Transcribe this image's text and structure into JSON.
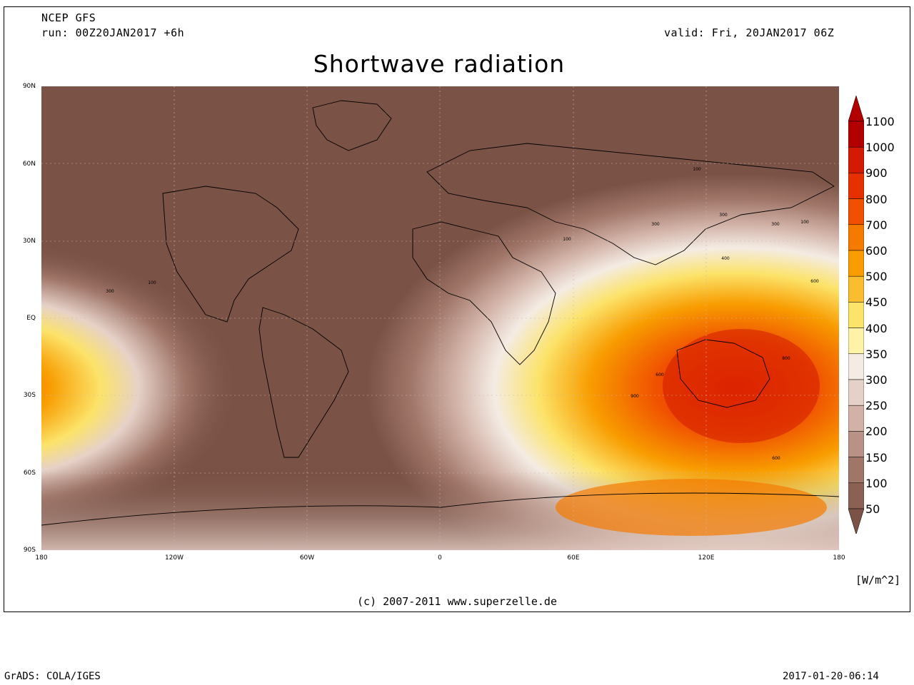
{
  "header": {
    "model": "NCEP GFS",
    "run": "run: 00Z20JAN2017 +6h",
    "valid": "valid: Fri, 20JAN2017 06Z",
    "title": "Shortwave radiation"
  },
  "axes": {
    "lat_labels": [
      "90N",
      "60N",
      "30N",
      "EQ",
      "30S",
      "60S",
      "90S"
    ],
    "lon_labels": [
      "180",
      "120W",
      "60W",
      "0",
      "60E",
      "120E",
      "180"
    ]
  },
  "colorbar": {
    "levels": [
      "1100",
      "1000",
      "900",
      "800",
      "700",
      "600",
      "500",
      "450",
      "400",
      "350",
      "300",
      "250",
      "200",
      "150",
      "100",
      "50"
    ],
    "colors": [
      "#b20000",
      "#d41a00",
      "#e63000",
      "#f05000",
      "#f57a00",
      "#f89c00",
      "#fbbd30",
      "#fce36a",
      "#fdf2a8",
      "#f4ece4",
      "#e6d1c8",
      "#d2b2a7",
      "#b99287",
      "#a07669",
      "#8a6154",
      "#7a5246"
    ],
    "unit": "[W/m^2]"
  },
  "contour_labels": [
    "100",
    "300",
    "300",
    "100",
    "100",
    "300",
    "400",
    "600",
    "800",
    "900",
    "600",
    "600",
    "300",
    "100"
  ],
  "copyright": "(c) 2007-2011 www.superzelle.de",
  "footer": {
    "left": "GrADS: COLA/IGES",
    "right": "2017-01-20-06:14"
  }
}
